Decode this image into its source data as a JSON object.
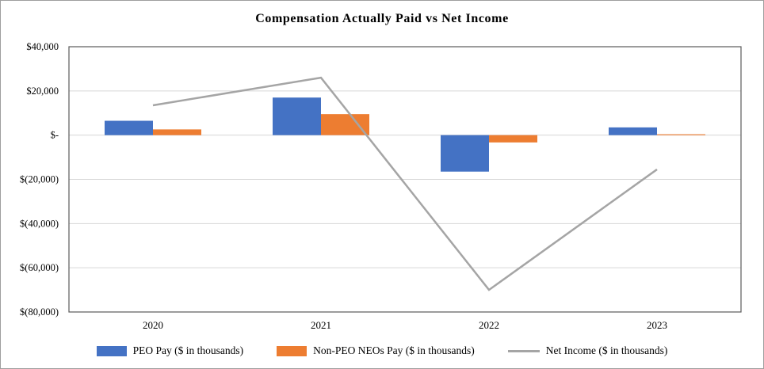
{
  "chart_data": {
    "type": "combo",
    "title": "Compensation Actually Paid vs Net Income",
    "categories": [
      "2020",
      "2021",
      "2022",
      "2023"
    ],
    "series": [
      {
        "name": "PEO Pay ($ in thousands)",
        "type": "bar",
        "color": "#4472C4",
        "values": [
          6500,
          17000,
          -16500,
          3500
        ]
      },
      {
        "name": "Non-PEO NEOs Pay ($ in thousands)",
        "type": "bar",
        "color": "#ED7D31",
        "values": [
          2600,
          9500,
          -3300,
          400
        ]
      },
      {
        "name": "Net Income ($ in thousands)",
        "type": "line",
        "color": "#A5A5A5",
        "values": [
          13500,
          26000,
          -70000,
          -15500
        ]
      }
    ],
    "ylim": [
      -80000,
      40000
    ],
    "yticks": [
      {
        "value": 40000,
        "label": "$40,000"
      },
      {
        "value": 20000,
        "label": "$20,000"
      },
      {
        "value": 0,
        "label": "$-"
      },
      {
        "value": -20000,
        "label": "$(20,000)"
      },
      {
        "value": -40000,
        "label": "$(40,000)"
      },
      {
        "value": -60000,
        "label": "$(60,000)"
      },
      {
        "value": -80000,
        "label": "$(80,000)"
      }
    ],
    "grid": true,
    "legend_position": "bottom"
  }
}
